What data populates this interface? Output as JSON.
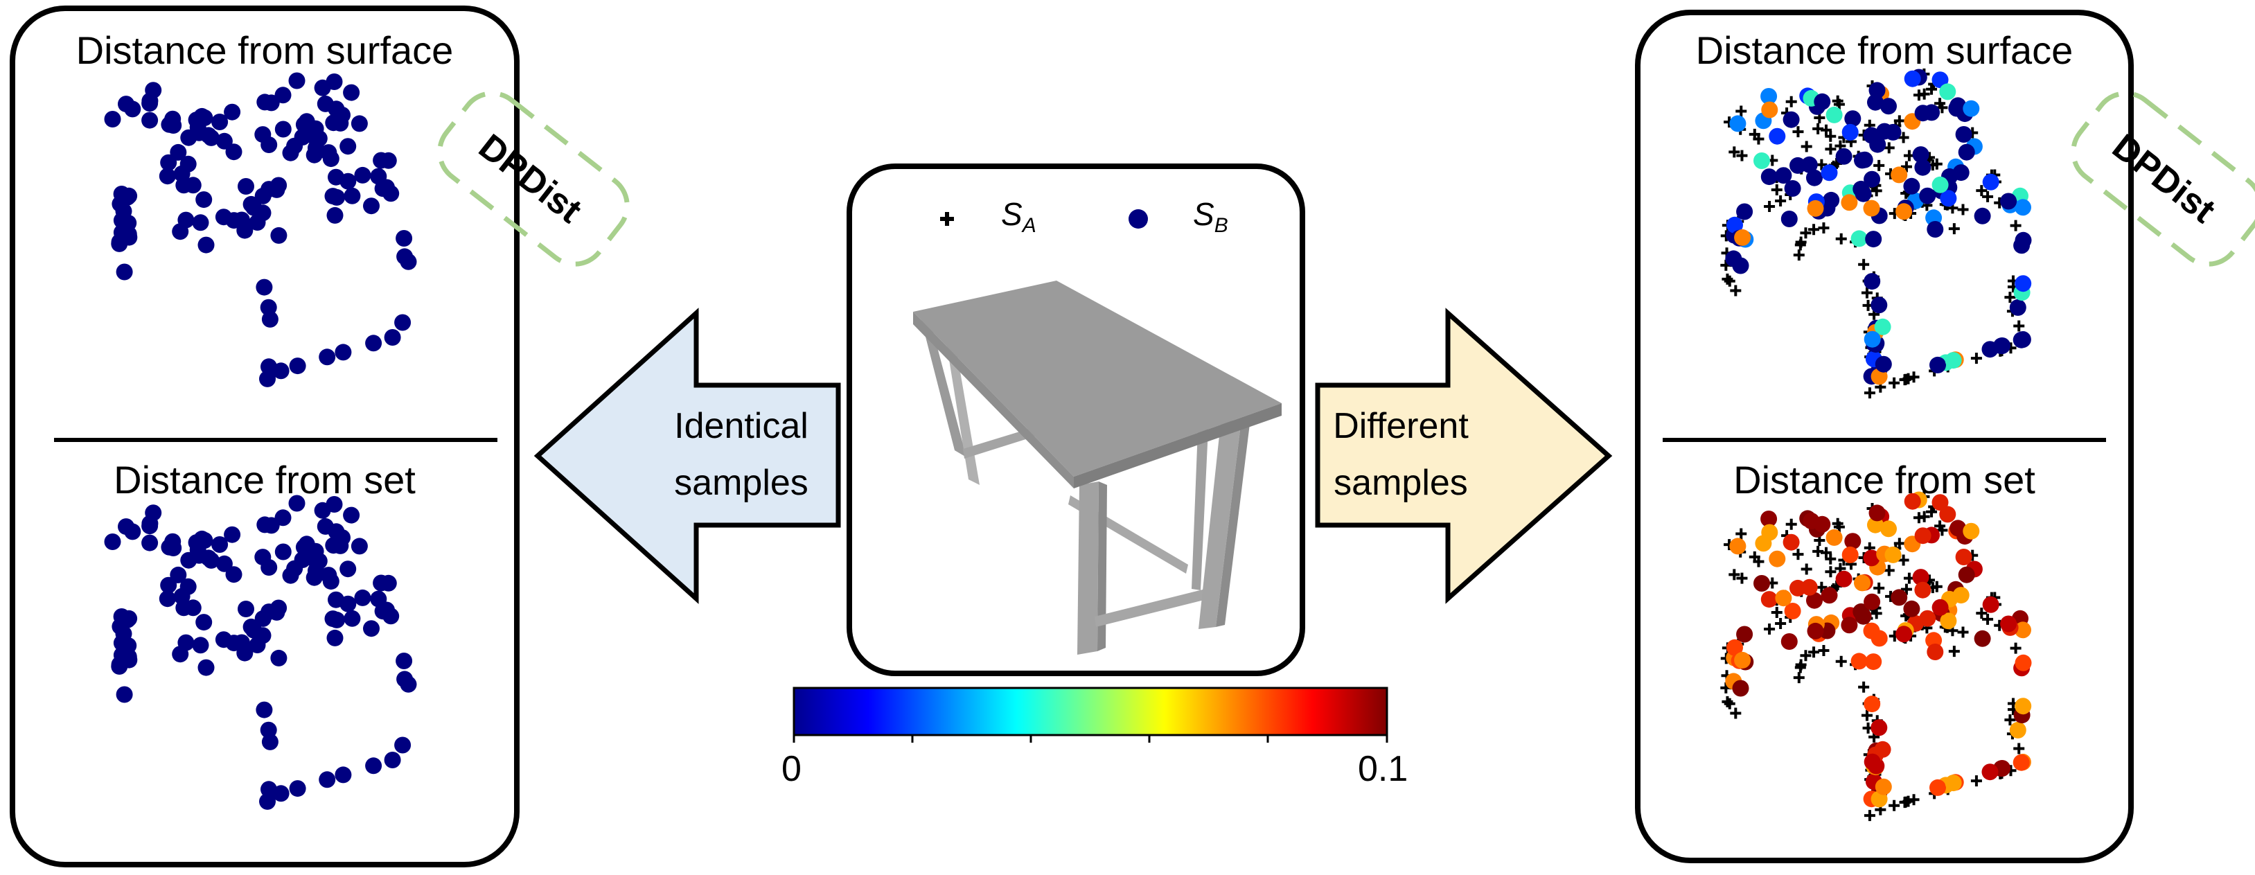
{
  "left_panel": {
    "top_title": "Distance from surface",
    "bottom_title": "Distance from set",
    "badge": "DPDist"
  },
  "right_panel": {
    "top_title": "Distance from surface",
    "bottom_title": "Distance from set",
    "badge": "DPDist"
  },
  "center": {
    "legend": {
      "a_symbol": "+",
      "a_label": "S",
      "a_sub": "A",
      "b_label": "S",
      "b_sub": "B"
    }
  },
  "left_arrow": {
    "line1": "Identical",
    "line2": "samples",
    "fill": "#dde9f5"
  },
  "right_arrow": {
    "line1": "Different",
    "line2": "samples",
    "fill": "#fdf0cc"
  },
  "colorbar": {
    "min_label": "0",
    "max_label": "0.1",
    "colormap": "jet"
  },
  "colors": {
    "point_blue": "#000080",
    "badge_border": "#a8d08d"
  }
}
